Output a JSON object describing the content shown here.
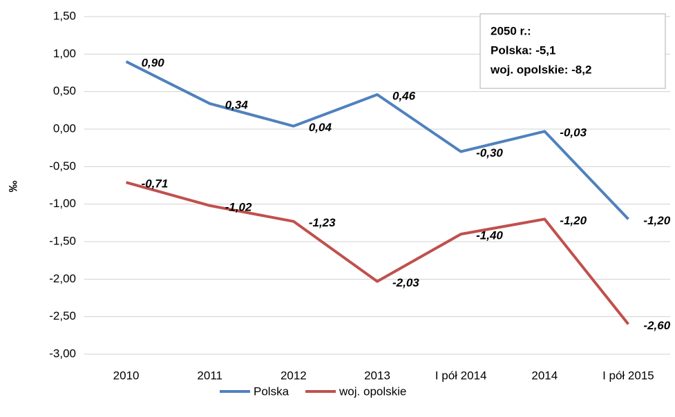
{
  "chart_data": {
    "type": "line",
    "y_label": "‰",
    "annotation": [
      "2050 r.:",
      "Polska: -5,1",
      "woj. opolskie: -8,2"
    ],
    "categories": [
      "2010",
      "2011",
      "2012",
      "2013",
      "I pół 2014",
      "2014",
      "I pół 2015"
    ],
    "series": [
      {
        "name": "Polska",
        "color": "#4f81bd",
        "values": [
          0.9,
          0.34,
          0.04,
          0.46,
          -0.3,
          -0.03,
          -1.2
        ],
        "value_labels": [
          "0,90",
          "0,34",
          "0,04",
          "0,46",
          "-0,30",
          "-0,03",
          "-1,20"
        ]
      },
      {
        "name": "woj. opolskie",
        "color": "#c0504d",
        "values": [
          -0.71,
          -1.02,
          -1.23,
          -2.03,
          -1.4,
          -1.2,
          -2.6
        ],
        "value_labels": [
          "-0,71",
          "-1,02",
          "-1,23",
          "-2,03",
          "-1,40",
          "-1,20",
          "-2,60"
        ]
      }
    ],
    "ylim": [
      -3.0,
      1.5
    ],
    "yticks": [
      {
        "value": 1.5,
        "label": "1,50"
      },
      {
        "value": 1.0,
        "label": "1,00"
      },
      {
        "value": 0.5,
        "label": "0,50"
      },
      {
        "value": 0.0,
        "label": "0,00"
      },
      {
        "value": -0.5,
        "label": "-0,50"
      },
      {
        "value": -1.0,
        "label": "-1,00"
      },
      {
        "value": -1.5,
        "label": "-1,50"
      },
      {
        "value": -2.0,
        "label": "-2,00"
      },
      {
        "value": -2.5,
        "label": "-2,50"
      },
      {
        "value": -3.0,
        "label": "-3,00"
      }
    ],
    "grid": true,
    "legend": "bottom"
  }
}
